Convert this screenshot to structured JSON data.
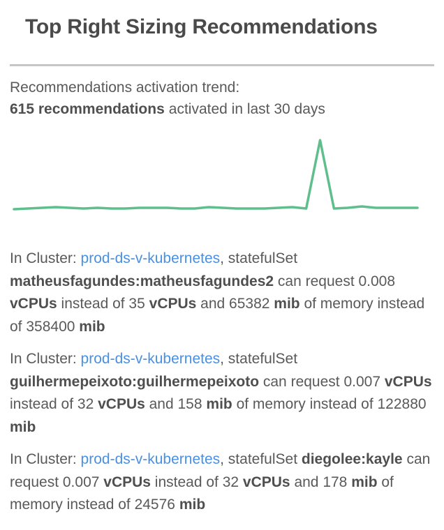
{
  "title": "Top Right Sizing Recommendations",
  "trend": {
    "label": "Recommendations activation trend:",
    "highlight": "615 recommendations",
    "rest": "activated in last 30 days"
  },
  "colors": {
    "chart_line": "#5fbf8c",
    "link_blue": "#4a90e2",
    "title_text": "#4a4a4a",
    "body_text": "#595959",
    "bold_text": "#4f4f4f",
    "divider": "#c6c6c6",
    "background": "#ffffff"
  },
  "chart_data": {
    "type": "line",
    "title": "Recommendations activation trend (sparkline, unlabeled axes)",
    "xlabel": "",
    "ylabel": "",
    "x": [
      1,
      2,
      3,
      4,
      5,
      6,
      7,
      8,
      9,
      10,
      11,
      12,
      13,
      14,
      15,
      16,
      17,
      18,
      19,
      20,
      21,
      22,
      23,
      24,
      25,
      26,
      27,
      28,
      29,
      30
    ],
    "values": [
      0,
      1,
      2,
      3,
      2,
      1,
      2,
      1,
      1,
      2,
      2,
      2,
      1,
      1,
      3,
      2,
      1,
      1,
      1,
      2,
      3,
      1,
      100,
      1,
      2,
      4,
      2,
      2,
      2,
      2
    ],
    "ylim": [
      0,
      108
    ],
    "units": "relative activations (peak day = 100)",
    "grid": false,
    "legend": false,
    "axes_hidden": true,
    "line_color": "#5fbf8c",
    "notes": "Flat near-zero baseline with tiny ripples for ~30 days, one sharp single-day spike about 73% along the x-axis, small bump just after the spike."
  },
  "recommendations": [
    {
      "segments": [
        {
          "text": "In Cluster: ",
          "style": "normal"
        },
        {
          "text": "prod-ds-v-kubernetes",
          "style": "link"
        },
        {
          "text": ", statefulSet ",
          "style": "normal"
        },
        {
          "text": "matheusfagundes:matheusfagundes2",
          "style": "bold"
        },
        {
          "text": " can request 0.008 ",
          "style": "normal"
        },
        {
          "text": "vCPUs",
          "style": "bold"
        },
        {
          "text": " instead of 35 ",
          "style": "normal"
        },
        {
          "text": "vCPUs",
          "style": "bold"
        },
        {
          "text": " and 65382 ",
          "style": "normal"
        },
        {
          "text": "mib",
          "style": "bold"
        },
        {
          "text": " of memory instead of 358400 ",
          "style": "normal"
        },
        {
          "text": "mib",
          "style": "bold"
        }
      ]
    },
    {
      "segments": [
        {
          "text": "In Cluster: ",
          "style": "normal"
        },
        {
          "text": "prod-ds-v-kubernetes",
          "style": "link"
        },
        {
          "text": ", statefulSet ",
          "style": "normal"
        },
        {
          "text": "guilhermepeixoto:guilhermepeixoto",
          "style": "bold"
        },
        {
          "text": " can request 0.007 ",
          "style": "normal"
        },
        {
          "text": "vCPUs",
          "style": "bold"
        },
        {
          "text": " instead of 32 ",
          "style": "normal"
        },
        {
          "text": "vCPUs",
          "style": "bold"
        },
        {
          "text": " and 158 ",
          "style": "normal"
        },
        {
          "text": "mib",
          "style": "bold"
        },
        {
          "text": " of memory instead of 122880 ",
          "style": "normal"
        },
        {
          "text": "mib",
          "style": "bold"
        }
      ]
    },
    {
      "segments": [
        {
          "text": "In Cluster: ",
          "style": "normal"
        },
        {
          "text": "prod-ds-v-kubernetes",
          "style": "link"
        },
        {
          "text": ", statefulSet ",
          "style": "normal"
        },
        {
          "text": "diegolee:kayle",
          "style": "bold"
        },
        {
          "text": " can request 0.007 ",
          "style": "normal"
        },
        {
          "text": "vCPUs",
          "style": "bold"
        },
        {
          "text": " instead of 32 ",
          "style": "normal"
        },
        {
          "text": "vCPUs",
          "style": "bold"
        },
        {
          "text": " and 178 ",
          "style": "normal"
        },
        {
          "text": "mib",
          "style": "bold"
        },
        {
          "text": " of memory instead of 24576 ",
          "style": "normal"
        },
        {
          "text": "mib",
          "style": "bold"
        }
      ]
    }
  ]
}
